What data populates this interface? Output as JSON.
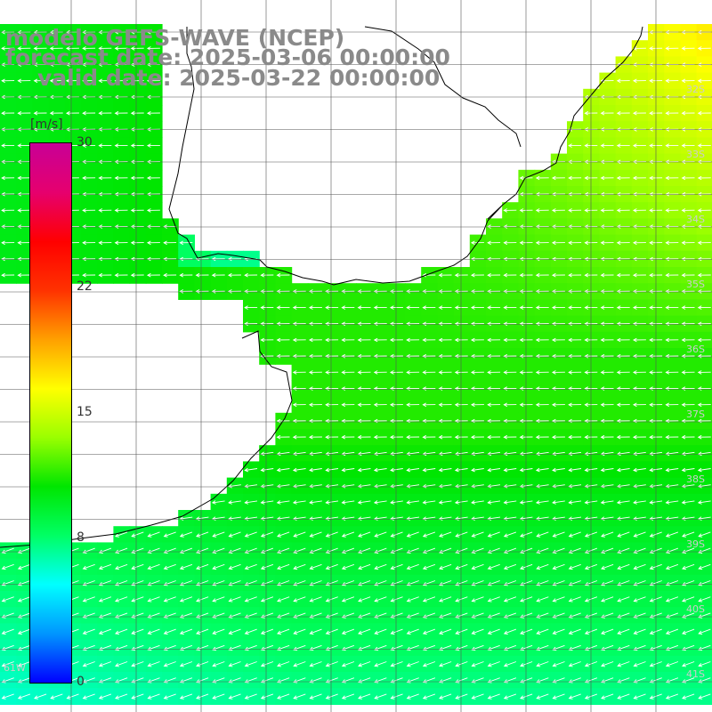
{
  "title": {
    "line1": "modelo GEFS-WAVE (NCEP)",
    "line2": "forecast date: 2025-03-06 00:00:00",
    "line3": "valid date: 2025-03-22 00:00:00"
  },
  "colorbar": {
    "unit": "[m/s]",
    "min": 0,
    "max": 30,
    "ticks": [
      {
        "value": 30,
        "label": "30"
      },
      {
        "value": 22,
        "label": "22"
      },
      {
        "value": 15,
        "label": "15"
      },
      {
        "value": 8,
        "label": "8"
      },
      {
        "value": 0,
        "label": "0"
      }
    ],
    "colors": [
      "#0000ff",
      "#0096ff",
      "#00ffff",
      "#00ff64",
      "#00e600",
      "#9bff00",
      "#ffff00",
      "#ffa000",
      "#ff3200",
      "#ff0000",
      "#e6006e",
      "#c80096"
    ]
  },
  "map": {
    "variable": "wind speed",
    "lat_labels": [
      "32S",
      "33S",
      "34S",
      "35S",
      "36S",
      "37S",
      "38S",
      "39S",
      "40S",
      "41S"
    ],
    "lon_label": "61W",
    "land_color": "#ffffff",
    "coast_color": "#000000",
    "grid_color": "#555555",
    "arrow_color": "#ffffff",
    "dominant_wind_direction": "from east"
  }
}
